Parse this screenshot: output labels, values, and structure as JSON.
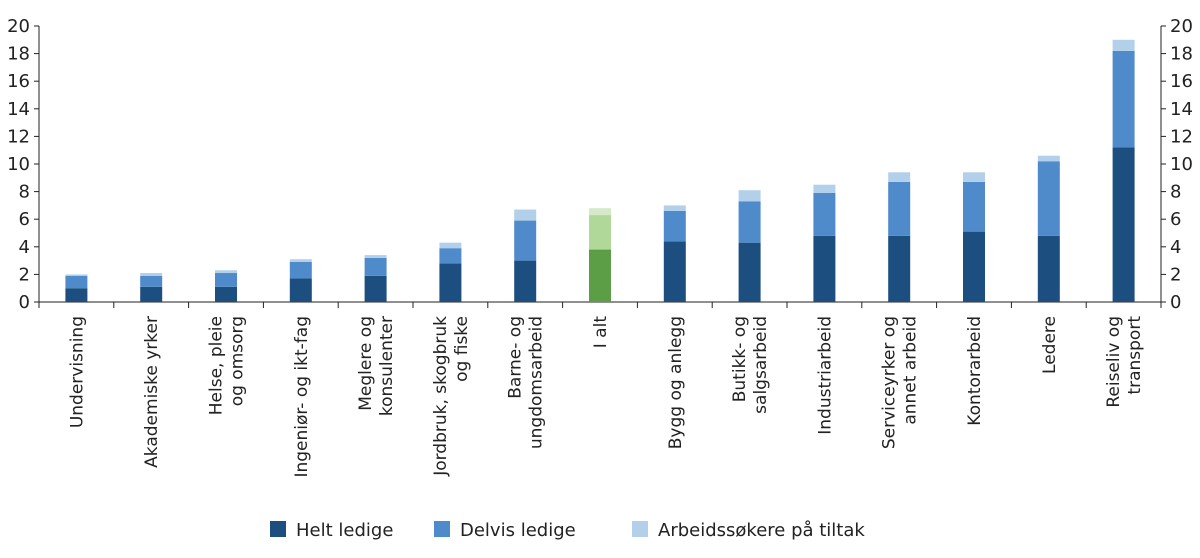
{
  "chart_data": {
    "type": "bar",
    "stacked": true,
    "title": "",
    "xlabel": "",
    "ylabel": "",
    "ylim": [
      0,
      20
    ],
    "yticks": [
      0,
      2,
      4,
      6,
      8,
      10,
      12,
      14,
      16,
      18,
      20
    ],
    "secondary_y_axis": true,
    "grid": false,
    "legend_position": "bottom",
    "categories": [
      [
        "Undervisning"
      ],
      [
        "Akademiske yrker"
      ],
      [
        "Helse, pleie",
        "og omsorg"
      ],
      [
        "Ingeniør- og ikt-fag"
      ],
      [
        "Meglere og",
        "konsulenter"
      ],
      [
        "Jordbruk, skogbruk",
        "og fiske"
      ],
      [
        "Barne- og",
        "ungdomsarbeid"
      ],
      [
        "I alt"
      ],
      [
        "Bygg og anlegg"
      ],
      [
        "Butikk- og",
        "salgsarbeid"
      ],
      [
        "Industriarbeid"
      ],
      [
        "Serviceyrker og",
        "annet arbeid"
      ],
      [
        "Kontorarbeid"
      ],
      [
        "Ledere"
      ],
      [
        "Reiseliv og",
        "transport"
      ]
    ],
    "highlight_index": 7,
    "series": [
      {
        "name": "Helt ledige",
        "color": "#1c4f80",
        "highlight_color": "#5b9e46",
        "values": [
          1.0,
          1.1,
          1.1,
          1.7,
          1.9,
          2.8,
          3.0,
          3.8,
          4.4,
          4.3,
          4.8,
          4.8,
          5.1,
          4.8,
          11.2
        ]
      },
      {
        "name": "Delvis ledige",
        "color": "#4f8bcb",
        "highlight_color": "#b0d898",
        "values": [
          0.9,
          0.8,
          1.0,
          1.2,
          1.3,
          1.1,
          2.9,
          2.5,
          2.2,
          3.0,
          3.1,
          3.9,
          3.6,
          5.4,
          7.0
        ]
      },
      {
        "name": "Arbeidssøkere på tiltak",
        "color": "#b3d0ea",
        "highlight_color": "#d6eac9",
        "values": [
          0.1,
          0.2,
          0.2,
          0.2,
          0.2,
          0.4,
          0.8,
          0.5,
          0.4,
          0.8,
          0.6,
          0.7,
          0.7,
          0.4,
          0.8
        ]
      }
    ]
  }
}
